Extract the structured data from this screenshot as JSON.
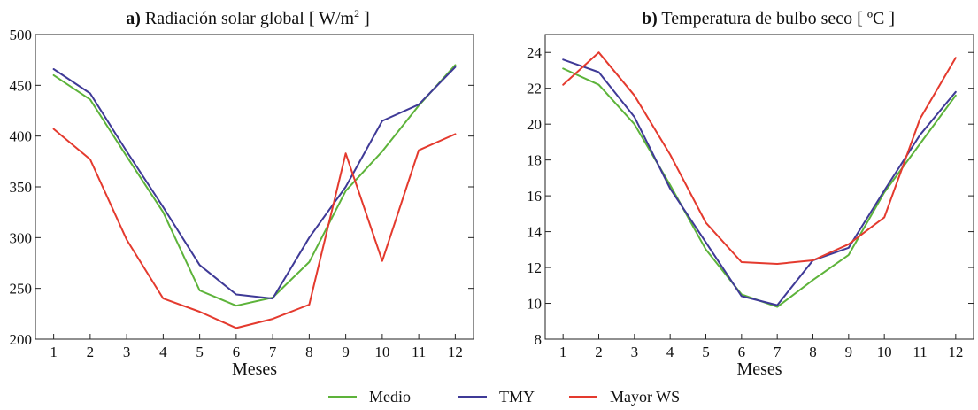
{
  "chart_data": [
    {
      "type": "line",
      "title_prefix": "a)",
      "title": "Radiación solar global [ W/m",
      "title_sup": "2",
      "title_suffix": " ]",
      "xlabel": "Meses",
      "ylabel": "",
      "x": [
        1,
        2,
        3,
        4,
        5,
        6,
        7,
        8,
        9,
        10,
        11,
        12
      ],
      "xlim": [
        0.5,
        12.5
      ],
      "ylim": [
        200,
        500
      ],
      "yticks": [
        200,
        250,
        300,
        350,
        400,
        450,
        500
      ],
      "grid": false,
      "series": [
        {
          "name": "Medio",
          "color": "#5db33a",
          "values": [
            460,
            436,
            380,
            325,
            248,
            233,
            241,
            276,
            346,
            385,
            430,
            470
          ]
        },
        {
          "name": "TMY",
          "color": "#3f3a97",
          "values": [
            466,
            442,
            385,
            330,
            273,
            244,
            240,
            300,
            350,
            415,
            431,
            468
          ]
        },
        {
          "name": "Mayor WS",
          "color": "#e43a2e",
          "values": [
            407,
            377,
            298,
            240,
            227,
            211,
            220,
            234,
            383,
            277,
            386,
            402
          ]
        }
      ]
    },
    {
      "type": "line",
      "title_prefix": "b)",
      "title": "Temperatura de bulbo seco [ ºC ]",
      "xlabel": "Meses",
      "ylabel": "",
      "x": [
        1,
        2,
        3,
        4,
        5,
        6,
        7,
        8,
        9,
        10,
        11,
        12
      ],
      "xlim": [
        0.5,
        12.5
      ],
      "ylim": [
        8,
        25
      ],
      "yticks": [
        8,
        10,
        12,
        14,
        16,
        18,
        20,
        22,
        24
      ],
      "grid": false,
      "series": [
        {
          "name": "Medio",
          "color": "#5db33a",
          "values": [
            23.1,
            22.2,
            20.0,
            16.6,
            13.0,
            10.5,
            9.8,
            11.3,
            12.7,
            16.2,
            18.9,
            21.6
          ]
        },
        {
          "name": "TMY",
          "color": "#3f3a97",
          "values": [
            23.6,
            22.9,
            20.4,
            16.4,
            13.4,
            10.4,
            9.9,
            12.4,
            13.1,
            16.3,
            19.4,
            21.8
          ]
        },
        {
          "name": "Mayor WS",
          "color": "#e43a2e",
          "values": [
            22.2,
            24.0,
            21.6,
            18.3,
            14.5,
            12.3,
            12.2,
            12.4,
            13.3,
            14.8,
            20.3,
            23.7
          ]
        }
      ]
    }
  ],
  "legend": {
    "items": [
      {
        "label": "Medio",
        "color": "#5db33a"
      },
      {
        "label": "TMY",
        "color": "#3f3a97"
      },
      {
        "label": "Mayor WS",
        "color": "#e43a2e"
      }
    ]
  }
}
